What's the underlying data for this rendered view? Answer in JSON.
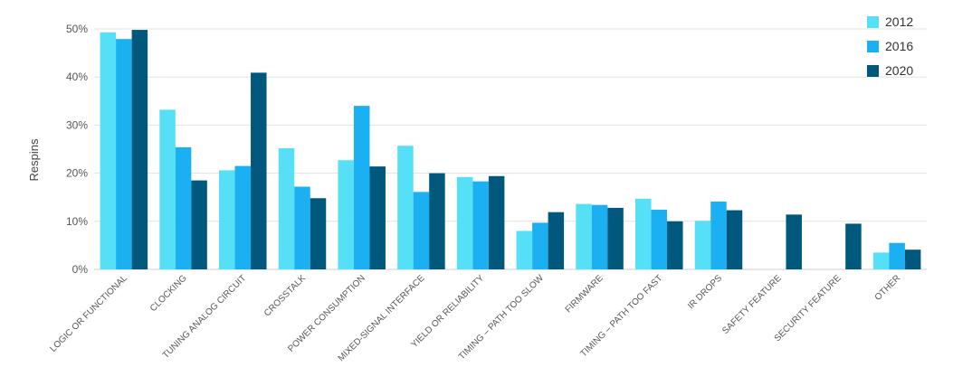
{
  "chart_data": {
    "type": "bar",
    "title": "",
    "xlabel": "",
    "ylabel": "Respins",
    "ylim": [
      0,
      50
    ],
    "yticks": [
      "0%",
      "10%",
      "20%",
      "30%",
      "40%",
      "50%"
    ],
    "grid": true,
    "legend_position": "top-right",
    "categories": [
      "LOGIC OR FUNCTIONAL",
      "CLOCKING",
      "TUNING ANALOG CIRCUIT",
      "CROSSTALK",
      "POWER CONSUMPTION",
      "MIXED-SIGNAL INTERFACE",
      "YIELD OR RELIABILITY",
      "TIMING – PATH TOO SLOW",
      "FIRMWARE",
      "TIMING – PATH TOO FAST",
      "IR DROPS",
      "SAFETY FEATURE",
      "SECURITY FEATURE",
      "OTHER"
    ],
    "series": [
      {
        "name": "2012",
        "color": "#55e0f7",
        "values": [
          49.3,
          33.2,
          20.6,
          25.2,
          22.7,
          25.7,
          19.2,
          8.0,
          13.6,
          14.7,
          10.1,
          null,
          null,
          3.5
        ]
      },
      {
        "name": "2016",
        "color": "#1ab0f2",
        "values": [
          47.9,
          25.4,
          21.5,
          17.2,
          34.0,
          16.1,
          18.3,
          9.7,
          13.4,
          12.4,
          14.1,
          null,
          null,
          5.5
        ]
      },
      {
        "name": "2020",
        "color": "#00587c",
        "values": [
          49.8,
          18.5,
          40.9,
          14.8,
          21.4,
          20.0,
          19.4,
          11.9,
          12.8,
          10.0,
          12.3,
          11.4,
          9.5,
          4.1
        ]
      }
    ]
  }
}
